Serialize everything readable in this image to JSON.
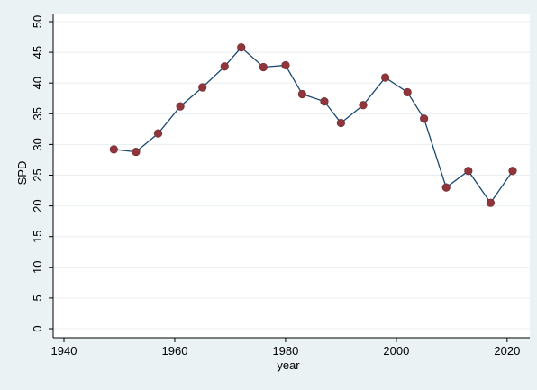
{
  "chart_data": {
    "type": "line",
    "title": "",
    "xlabel": "year",
    "ylabel": "SPD",
    "xlim": [
      1940,
      2021
    ],
    "ylim": [
      0,
      50
    ],
    "xticks": [
      1940,
      1960,
      1980,
      2000,
      2020
    ],
    "yticks": [
      0,
      5,
      10,
      15,
      20,
      25,
      30,
      35,
      40,
      45,
      50
    ],
    "grid": "horizontal",
    "colors": {
      "background": "#eaf2f3",
      "plot": "#ffffff",
      "grid": "#e8eef0",
      "line": "#1a476f",
      "marker": "#90353b"
    },
    "series": [
      {
        "x": [
          1949,
          1953,
          1957,
          1961,
          1965,
          1969,
          1972,
          1976,
          1980,
          1983,
          1987,
          1990,
          1994,
          1998,
          2002,
          2005,
          2009,
          2013,
          2017,
          2021
        ],
        "y": [
          29.2,
          28.8,
          31.8,
          36.2,
          39.3,
          42.7,
          45.8,
          42.6,
          42.9,
          38.2,
          37.0,
          33.5,
          36.4,
          40.9,
          38.5,
          34.2,
          23.0,
          25.7,
          20.5,
          25.7
        ]
      }
    ]
  }
}
